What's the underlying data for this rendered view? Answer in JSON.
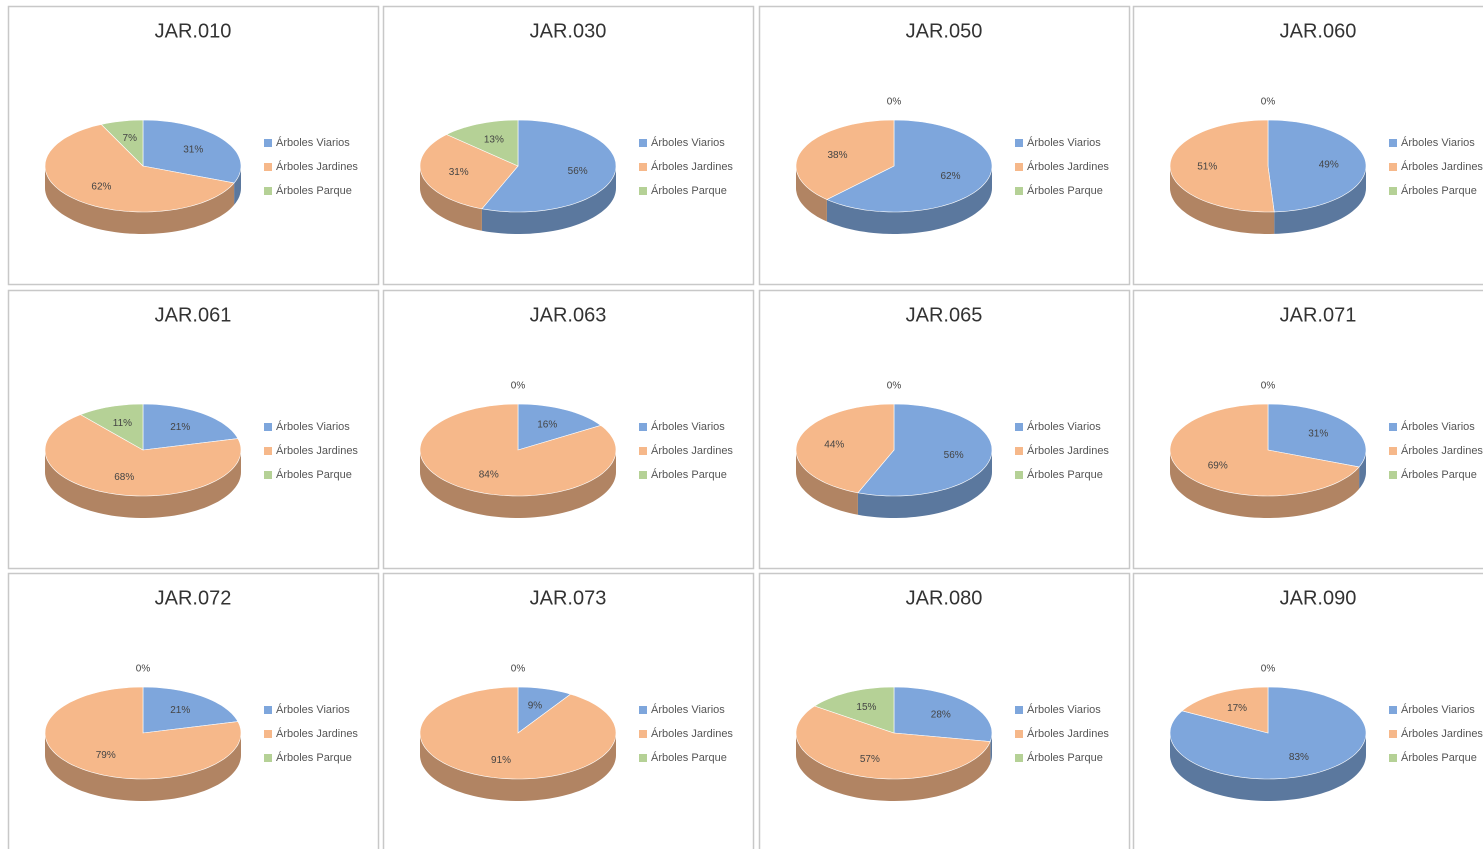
{
  "chart_data": [
    {
      "type": "pie",
      "title": "JAR.010",
      "categories": [
        "Árboles Viarios",
        "Árboles Jardines",
        "Árboles Parque"
      ],
      "values": [
        31,
        62,
        7
      ],
      "value_labels": [
        "31%",
        "62%",
        "7%"
      ],
      "colors": [
        "#7ea6dc",
        "#f6b88a",
        "#b5d196"
      ]
    },
    {
      "type": "pie",
      "title": "JAR.030",
      "categories": [
        "Árboles Viarios",
        "Árboles Jardines",
        "Árboles Parque"
      ],
      "values": [
        56,
        31,
        13
      ],
      "value_labels": [
        "56%",
        "31%",
        "13%"
      ],
      "colors": [
        "#7ea6dc",
        "#f6b88a",
        "#b5d196"
      ]
    },
    {
      "type": "pie",
      "title": "JAR.050",
      "categories": [
        "Árboles Viarios",
        "Árboles Jardines",
        "Árboles Parque"
      ],
      "values": [
        62,
        38,
        0
      ],
      "value_labels": [
        "62%",
        "38%",
        "0%"
      ],
      "colors": [
        "#7ea6dc",
        "#f6b88a",
        "#b5d196"
      ]
    },
    {
      "type": "pie",
      "title": "JAR.060",
      "categories": [
        "Árboles Viarios",
        "Árboles Jardines",
        "Árboles Parque"
      ],
      "values": [
        49,
        51,
        0
      ],
      "value_labels": [
        "49%",
        "51%",
        "0%"
      ],
      "colors": [
        "#7ea6dc",
        "#f6b88a",
        "#b5d196"
      ]
    },
    {
      "type": "pie",
      "title": "JAR.061",
      "categories": [
        "Árboles Viarios",
        "Árboles Jardines",
        "Árboles Parque"
      ],
      "values": [
        21,
        68,
        11
      ],
      "value_labels": [
        "21%",
        "68%",
        "11%"
      ],
      "colors": [
        "#7ea6dc",
        "#f6b88a",
        "#b5d196"
      ]
    },
    {
      "type": "pie",
      "title": "JAR.063",
      "categories": [
        "Árboles Viarios",
        "Árboles Jardines",
        "Árboles Parque"
      ],
      "values": [
        16,
        84,
        0
      ],
      "value_labels": [
        "16%",
        "84%",
        "0%"
      ],
      "colors": [
        "#7ea6dc",
        "#f6b88a",
        "#b5d196"
      ]
    },
    {
      "type": "pie",
      "title": "JAR.065",
      "categories": [
        "Árboles Viarios",
        "Árboles Jardines",
        "Árboles Parque"
      ],
      "values": [
        56,
        44,
        0
      ],
      "value_labels": [
        "56%",
        "44%",
        "0%"
      ],
      "colors": [
        "#7ea6dc",
        "#f6b88a",
        "#b5d196"
      ]
    },
    {
      "type": "pie",
      "title": "JAR.071",
      "categories": [
        "Árboles Viarios",
        "Árboles Jardines",
        "Árboles Parque"
      ],
      "values": [
        31,
        69,
        0
      ],
      "value_labels": [
        "31%",
        "69%",
        "0%"
      ],
      "colors": [
        "#7ea6dc",
        "#f6b88a",
        "#b5d196"
      ]
    },
    {
      "type": "pie",
      "title": "JAR.072",
      "categories": [
        "Árboles Viarios",
        "Árboles Jardines",
        "Árboles Parque"
      ],
      "values": [
        21,
        79,
        0
      ],
      "value_labels": [
        "21%",
        "79%",
        "0%"
      ],
      "colors": [
        "#7ea6dc",
        "#f6b88a",
        "#b5d196"
      ]
    },
    {
      "type": "pie",
      "title": "JAR.073",
      "categories": [
        "Árboles Viarios",
        "Árboles Jardines",
        "Árboles Parque"
      ],
      "values": [
        9,
        91,
        0
      ],
      "value_labels": [
        "9%",
        "91%",
        "0%"
      ],
      "colors": [
        "#7ea6dc",
        "#f6b88a",
        "#b5d196"
      ]
    },
    {
      "type": "pie",
      "title": "JAR.080",
      "categories": [
        "Árboles Viarios",
        "Árboles Jardines",
        "Árboles Parque"
      ],
      "values": [
        28,
        57,
        15
      ],
      "value_labels": [
        "28%",
        "57%",
        "15%"
      ],
      "colors": [
        "#7ea6dc",
        "#f6b88a",
        "#b5d196"
      ]
    },
    {
      "type": "pie",
      "title": "JAR.090",
      "categories": [
        "Árboles Viarios",
        "Árboles Jardines",
        "Árboles Parque"
      ],
      "values": [
        83,
        17,
        0
      ],
      "value_labels": [
        "83%",
        "17%",
        "0%"
      ],
      "colors": [
        "#7ea6dc",
        "#f6b88a",
        "#b5d196"
      ]
    }
  ]
}
